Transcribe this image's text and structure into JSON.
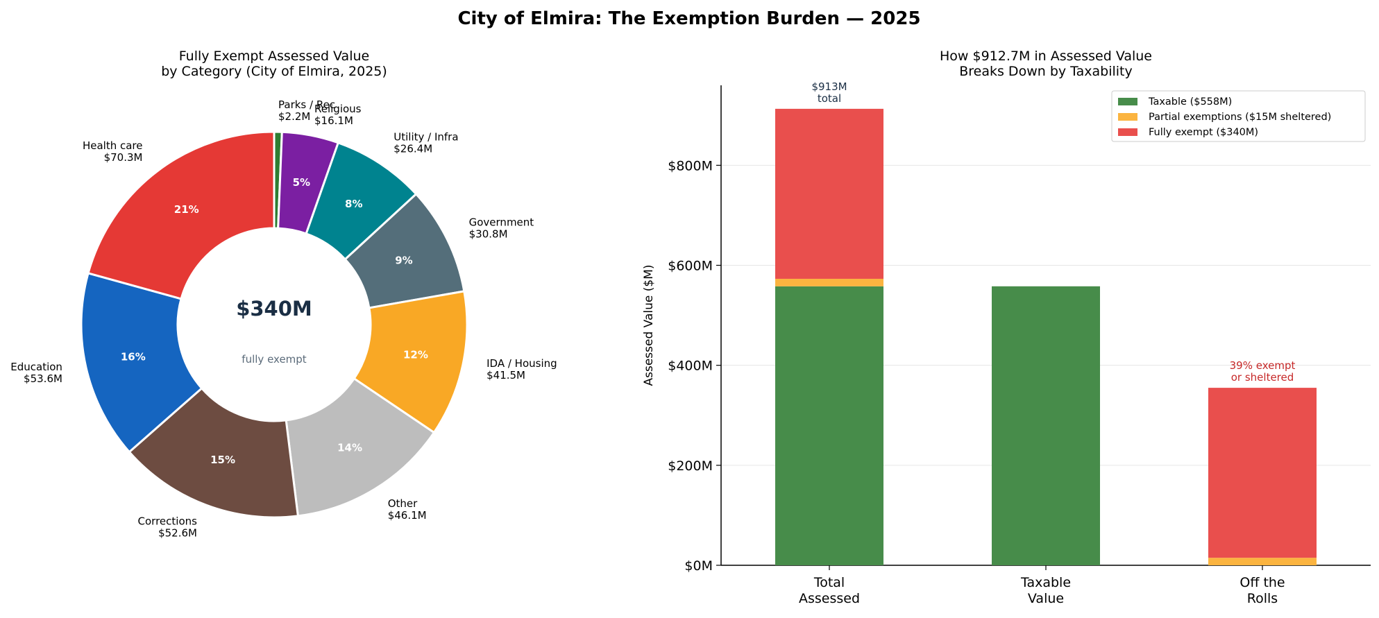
{
  "figure": {
    "title": "City of Elmira: The Exemption Burden — 2025"
  },
  "chart_data": [
    {
      "type": "pie",
      "variant": "donut",
      "title": "Fully Exempt Assessed Value\nby Category (City of Elmira, 2025)",
      "center_value": "$340M",
      "center_label": "fully exempt",
      "unit": "$M",
      "slices": [
        {
          "label": "Parks / Rec",
          "value": 2.2,
          "value_label": "$2.2M",
          "color": "#2e7d32",
          "pct_label": ""
        },
        {
          "label": "Religious",
          "value": 16.1,
          "value_label": "$16.1M",
          "color": "#7b1fa2",
          "pct_label": "5%"
        },
        {
          "label": "Utility / Infra",
          "value": 26.4,
          "value_label": "$26.4M",
          "color": "#00838f",
          "pct_label": "8%"
        },
        {
          "label": "Government",
          "value": 30.8,
          "value_label": "$30.8M",
          "color": "#546e7a",
          "pct_label": "9%"
        },
        {
          "label": "IDA / Housing",
          "value": 41.5,
          "value_label": "$41.5M",
          "color": "#f9a825",
          "pct_label": "12%"
        },
        {
          "label": "Other",
          "value": 46.1,
          "value_label": "$46.1M",
          "color": "#bdbdbd",
          "pct_label": "14%"
        },
        {
          "label": "Corrections",
          "value": 52.6,
          "value_label": "$52.6M",
          "color": "#6d4c41",
          "pct_label": "15%"
        },
        {
          "label": "Education",
          "value": 53.6,
          "value_label": "$53.6M",
          "color": "#1565c0",
          "pct_label": "16%"
        },
        {
          "label": "Health care",
          "value": 70.3,
          "value_label": "$70.3M",
          "color": "#e53935",
          "pct_label": "21%"
        }
      ]
    },
    {
      "type": "bar",
      "stacked": true,
      "title": "How $912.7M in Assessed Value\nBreaks Down by Taxability",
      "ylabel": "Assessed Value ($M)",
      "ylim": [
        0,
        960
      ],
      "yticks": [
        0,
        200,
        400,
        600,
        800
      ],
      "ytick_labels": [
        "$0M",
        "$200M",
        "$400M",
        "$600M",
        "$800M"
      ],
      "grid": "y",
      "legend_position": "top-right",
      "categories": [
        "Total\nAssessed",
        "Taxable\nValue",
        "Off the\nRolls"
      ],
      "series": [
        {
          "name": "Taxable ($558M)",
          "color": "#478c4a",
          "values": [
            558,
            558,
            0
          ]
        },
        {
          "name": "Partial exemptions ($15M sheltered)",
          "color": "#fbb440",
          "values": [
            15,
            0,
            15
          ]
        },
        {
          "name": "Fully exempt ($340M)",
          "color": "#e94f4d",
          "values": [
            340,
            0,
            340
          ]
        }
      ],
      "annotations": [
        {
          "category_index": 0,
          "text": "$913M\ntotal",
          "color": "#1a2e44"
        },
        {
          "category_index": 2,
          "text": "39% exempt\nor sheltered",
          "color": "#c62828"
        }
      ]
    }
  ]
}
